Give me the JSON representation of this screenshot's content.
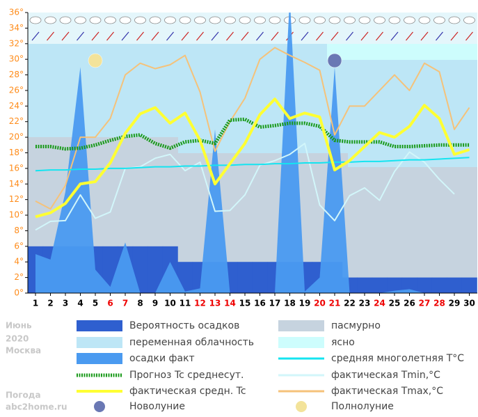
{
  "chart_data": {
    "type": "line",
    "categories": [
      1,
      2,
      3,
      4,
      5,
      6,
      7,
      8,
      9,
      10,
      11,
      12,
      13,
      14,
      15,
      16,
      17,
      18,
      19,
      20,
      21,
      22,
      23,
      24,
      25,
      26,
      27,
      28,
      29,
      30
    ],
    "category_colors": [
      "#000",
      "#000",
      "#000",
      "#000",
      "#000",
      "#e00",
      "#e00",
      "#000",
      "#000",
      "#000",
      "#000",
      "#e00",
      "#e00",
      "#e00",
      "#000",
      "#000",
      "#000",
      "#000",
      "#000",
      "#e00",
      "#e00",
      "#000",
      "#000",
      "#e00",
      "#000",
      "#000",
      "#e00",
      "#e00",
      "#000",
      "#000"
    ],
    "ylim": [
      0,
      36
    ],
    "yticks": [
      {
        "value": 0,
        "label": "0°"
      },
      {
        "value": 2,
        "label": "2°"
      },
      {
        "value": 4,
        "label": "4°"
      },
      {
        "value": 6,
        "label": "6°"
      },
      {
        "value": 8,
        "label": "8°"
      },
      {
        "value": 10,
        "label": "10°"
      },
      {
        "value": 12,
        "label": "12°"
      },
      {
        "value": 14,
        "label": "14°"
      },
      {
        "value": 16,
        "label": "16°"
      },
      {
        "value": 18,
        "label": "18°"
      },
      {
        "value": 20,
        "label": "20°"
      },
      {
        "value": 22,
        "label": "22°"
      },
      {
        "value": 24,
        "label": "24°"
      },
      {
        "value": 26,
        "label": "26°"
      },
      {
        "value": 28,
        "label": "28°"
      },
      {
        "value": 30,
        "label": "30°"
      },
      {
        "value": 32,
        "label": "32°"
      },
      {
        "value": 34,
        "label": "34°"
      },
      {
        "value": 36,
        "label": "36°"
      }
    ],
    "series": [
      {
        "name": "Вероятность осадков",
        "style": "step",
        "color": "#2f5fcf",
        "values": [
          6,
          6,
          6,
          6,
          6,
          6,
          6,
          6,
          6,
          6,
          4,
          4,
          4,
          4,
          4,
          4,
          4,
          4,
          4,
          4,
          4,
          2,
          2,
          2,
          2,
          2,
          2,
          2,
          2,
          2
        ]
      },
      {
        "name": "осадки факт",
        "style": "area",
        "color": "#4a9af0",
        "values": [
          5,
          4.3,
          13,
          29,
          3,
          0.8,
          6.5,
          0,
          0,
          4,
          0.2,
          0.6,
          21,
          0,
          0,
          0,
          0,
          38,
          0.2,
          2,
          29,
          0,
          0,
          0,
          0.3,
          0.5,
          0,
          0,
          0,
          0
        ]
      },
      {
        "name": "Прогноз Tc среднесут.",
        "style": "dotted",
        "color": "#1a9a1a",
        "values": [
          18.8,
          18.8,
          18.5,
          18.6,
          19.0,
          19.6,
          20.1,
          20.3,
          19.2,
          18.6,
          19.4,
          19.6,
          19.2,
          22.2,
          22.3,
          21.3,
          21.5,
          21.8,
          21.8,
          21.4,
          19.6,
          19.4,
          19.4,
          19.4,
          18.8,
          18.8,
          18.9,
          19.0,
          19.0,
          19.0
        ]
      },
      {
        "name": "фактическая средн. Tc",
        "style": "line",
        "width": 4,
        "color": "#ffff33",
        "values": [
          9.8,
          10.3,
          11.5,
          14.0,
          14.3,
          16.7,
          20.5,
          23.0,
          23.8,
          21.8,
          23.1,
          19.6,
          14.0,
          16.6,
          19.2,
          22.9,
          24.9,
          22.4,
          23.1,
          22.6,
          15.8,
          17.0,
          18.8,
          20.6,
          20.0,
          21.4,
          24.1,
          22.4,
          17.8,
          18.4
        ]
      },
      {
        "name": "средняя многолетняя T°C",
        "style": "line",
        "width": 2,
        "color": "#14e4f0",
        "values": [
          15.7,
          15.8,
          15.8,
          15.9,
          15.9,
          16.0,
          16.0,
          16.1,
          16.2,
          16.2,
          16.3,
          16.3,
          16.4,
          16.4,
          16.5,
          16.5,
          16.6,
          16.6,
          16.7,
          16.7,
          16.8,
          16.8,
          16.9,
          16.9,
          17.0,
          17.1,
          17.1,
          17.2,
          17.3,
          17.4
        ]
      },
      {
        "name": "фактическая Tmin,°C",
        "style": "line",
        "width": 2,
        "color": "#d2f6fa",
        "values": [
          8.1,
          9.2,
          9.3,
          12.6,
          9.6,
          10.4,
          16.0,
          16.2,
          17.3,
          17.8,
          15.7,
          16.8,
          10.5,
          10.6,
          12.6,
          16.4,
          17.0,
          17.8,
          19.2,
          11.3,
          9.3,
          12.5,
          13.5,
          11.9,
          15.6,
          18.1,
          16.8,
          14.6,
          12.7,
          null
        ]
      },
      {
        "name": "фактическая Tmax,°C",
        "style": "line",
        "width": 2,
        "color": "#f5c27a",
        "values": [
          11.8,
          10.8,
          13.8,
          20.0,
          20.0,
          22.4,
          28.0,
          29.5,
          28.8,
          29.3,
          30.5,
          25.8,
          18.2,
          22.0,
          25.0,
          30.0,
          31.5,
          30.5,
          29.6,
          28.6,
          20.3,
          24.0,
          24.0,
          26.0,
          28.0,
          26.0,
          29.5,
          28.4,
          21.0,
          23.8
        ]
      }
    ],
    "clouds": [
      {
        "name": "переменная облачность",
        "color": "#bde6f6"
      },
      {
        "name": "пасмурно",
        "color": "#c6d3df"
      },
      {
        "name": "ясно",
        "color": "#cdfdfd"
      }
    ],
    "moons": {
      "new": {
        "name": "Новолуние",
        "day": 21,
        "color": "#6a78b4"
      },
      "full": {
        "name": "Полнолуние",
        "day": 5,
        "color": "#f3e39a"
      }
    }
  },
  "info": {
    "month": "Июнь",
    "year": "2020",
    "city": "Москва",
    "site_label": "Погода",
    "site": "abc2home.ru"
  }
}
